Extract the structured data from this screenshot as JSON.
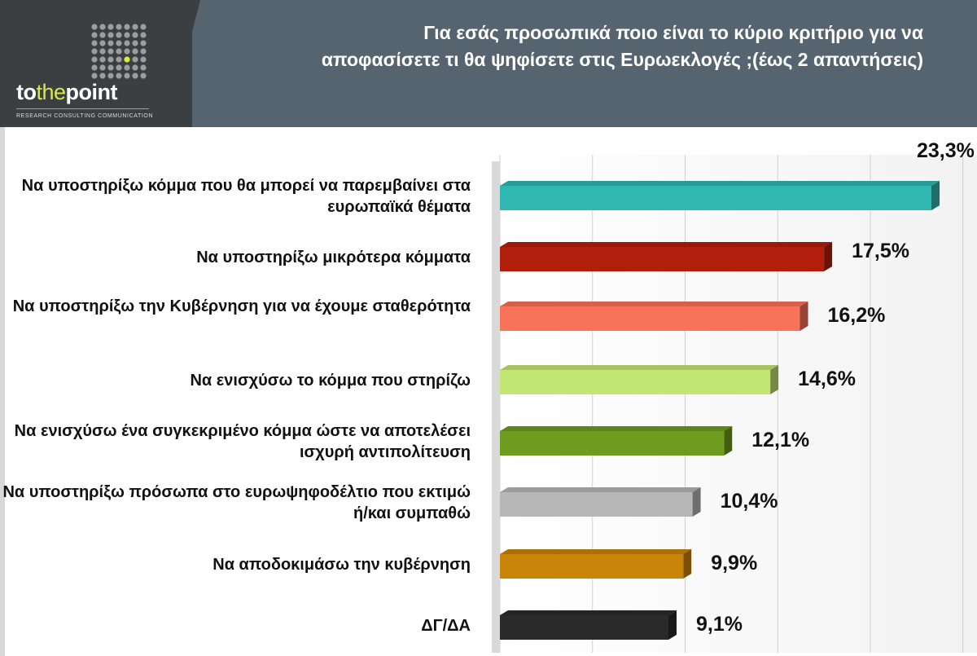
{
  "header": {
    "brand_to": "to",
    "brand_the": "the",
    "brand_point": "point",
    "tagline": "RESEARCH  CONSULTING  COMMUNICATION",
    "title": "Για εσάς προσωπικά ποιο είναι το κύριο κριτήριο για να αποφασίσετε τι θα ψηφίσετε στις Ευρωεκλογές ;(έως 2 απαντήσεις)"
  },
  "chart_data": {
    "type": "bar",
    "orientation": "horizontal",
    "title": "Για εσάς προσωπικά ποιο είναι το κύριο κριτήριο για να αποφασίσετε τι θα ψηφίσετε στις Ευρωεκλογές ;(έως 2 απαντήσεις)",
    "categories": [
      "Να υποστηρίξω κόμμα που θα μπορεί να παρεμβαίνει στα ευρωπαϊκά θέματα",
      "Να υποστηρίξω μικρότερα κόμματα",
      "Να υποστηρίξω την Κυβέρνηση για να έχουμε σταθερότητα",
      "Να ενισχύσω το κόμμα που στηρίζω",
      "Να ενισχύσω ένα συγκεκριμένο κόμμα ώστε να αποτελέσει ισχυρή αντιπολίτευση",
      "Να υποστηρίξω πρόσωπα στο ευρωψηφοδέλτιο που εκτιμώ ή/και συμπαθώ",
      "Να αποδοκιμάσω την κυβέρνηση",
      "ΔΓ/ΔΑ"
    ],
    "values": [
      23.3,
      17.5,
      16.2,
      14.6,
      12.1,
      10.4,
      9.9,
      9.1
    ],
    "value_labels": [
      "23,3%",
      "17,5%",
      "16,2%",
      "14,6%",
      "12,1%",
      "10,4%",
      "9,9%",
      "9,1%"
    ],
    "colors": [
      "#2fb7b0",
      "#b21e0c",
      "#f9725a",
      "#c3e573",
      "#6f9c1f",
      "#b7b7b7",
      "#c98509",
      "#2a2a2a"
    ],
    "xlim": [
      0,
      25
    ],
    "grid": true
  }
}
